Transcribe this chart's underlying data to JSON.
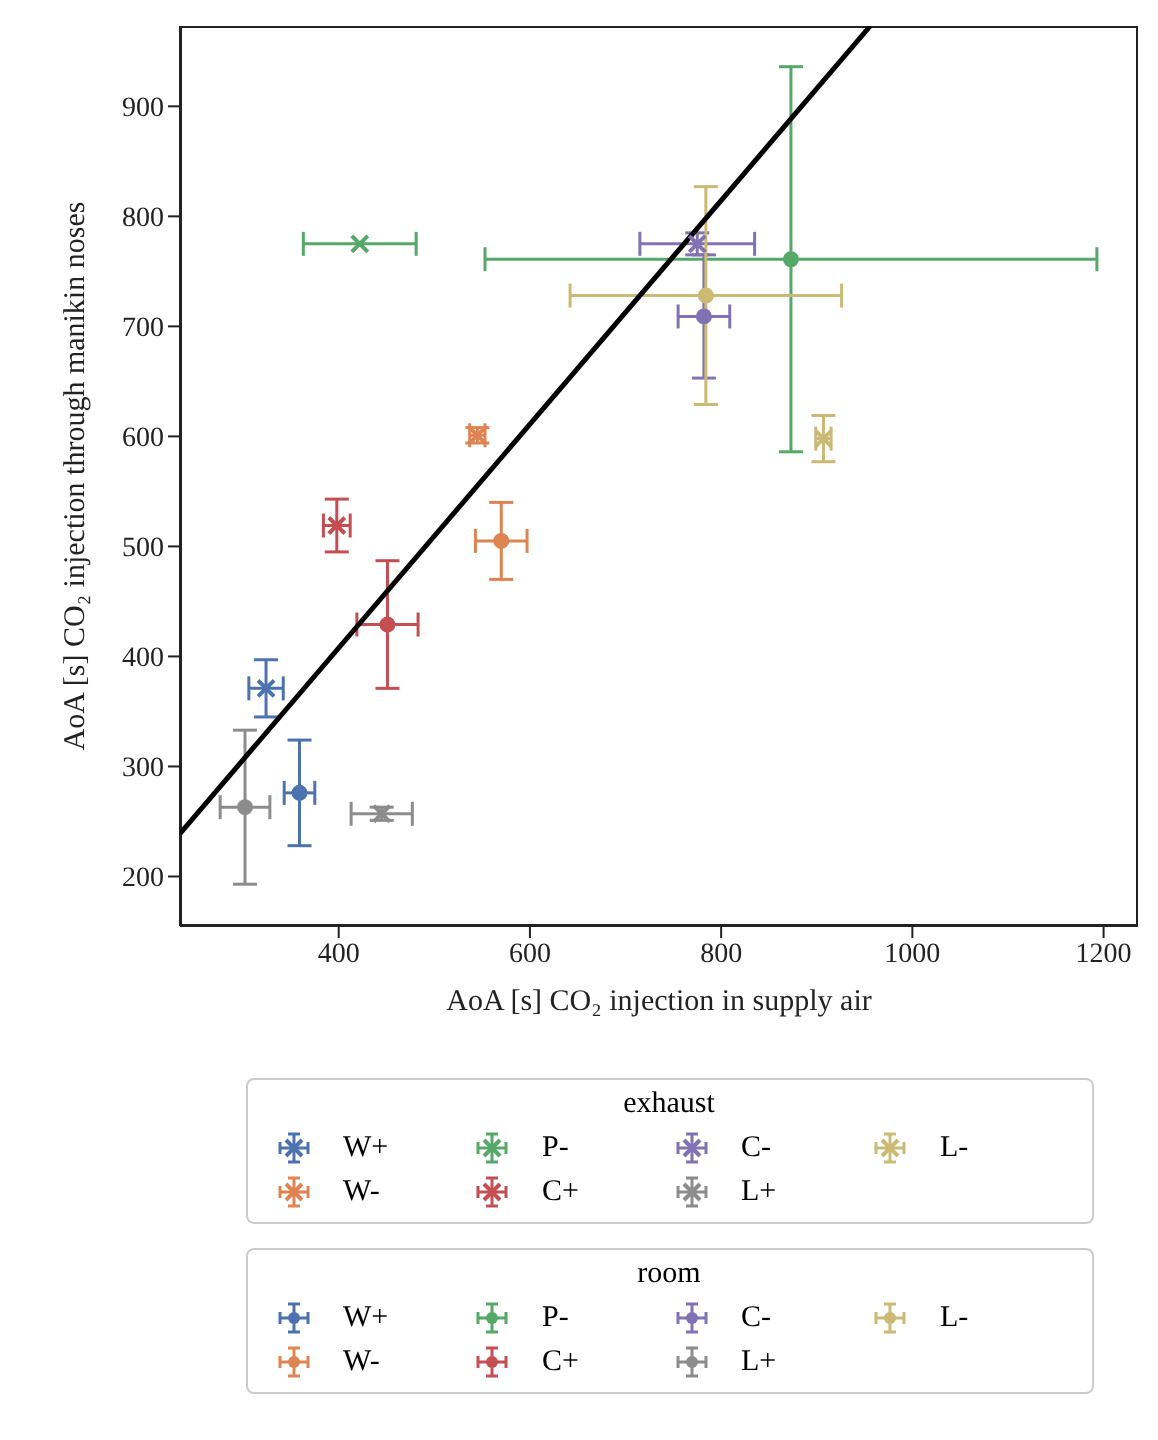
{
  "chart_data": {
    "type": "scatter",
    "xlabel": "AoA [s] CO₂ injection in supply air",
    "ylabel": "AoA [s] CO₂ injection through manikin noses",
    "legend_title": [
      "exhaust",
      "room"
    ],
    "legend": "bottom",
    "xlim": [
      234,
      1236
    ],
    "xticks": [
      400,
      600,
      800,
      1000,
      1200
    ],
    "ylim": [
      155,
      973
    ],
    "yticks": [
      200,
      300,
      400,
      500,
      600,
      700,
      800,
      900
    ],
    "series": [
      {
        "name": "W+",
        "color": "#4c72b0",
        "marker": "cross",
        "x": [
          324
        ],
        "values": [
          371
        ],
        "xerrors": [
          18
        ],
        "errors": [
          26
        ]
      },
      {
        "name": "W-",
        "color": "#dd8452",
        "marker": "cross",
        "x": [
          545
        ],
        "values": [
          601
        ],
        "xerrors": [
          8
        ],
        "errors": [
          7
        ]
      },
      {
        "name": "P-",
        "color": "#55a868",
        "marker": "cross",
        "x": [
          422
        ],
        "values": [
          775
        ],
        "xerrors": [
          59
        ],
        "errors": [
          null
        ]
      },
      {
        "name": "C+",
        "color": "#c44e52",
        "marker": "cross",
        "x": [
          398
        ],
        "values": [
          519
        ],
        "xerrors": [
          14
        ],
        "errors": [
          24
        ]
      },
      {
        "name": "C-",
        "color": "#8172b3",
        "marker": "cross",
        "x": [
          775
        ],
        "values": [
          775
        ],
        "xerrors": [
          60
        ],
        "errors": [
          10
        ]
      },
      {
        "name": "L+",
        "color": "#8c8c8c",
        "marker": "cross",
        "x": [
          445
        ],
        "values": [
          257
        ],
        "xerrors": [
          32
        ],
        "errors": [
          6
        ]
      },
      {
        "name": "L-",
        "color": "#ccb974",
        "marker": "cross",
        "x": [
          907
        ],
        "values": [
          598
        ],
        "xerrors": [
          8
        ],
        "errors": [
          21
        ]
      },
      {
        "name": "W+",
        "color": "#4c72b0",
        "marker": "circle",
        "x": [
          359
        ],
        "values": [
          276
        ],
        "xerrors": [
          16
        ],
        "errors": [
          48
        ]
      },
      {
        "name": "W-",
        "color": "#dd8452",
        "marker": "circle",
        "x": [
          570
        ],
        "values": [
          505
        ],
        "xerrors": [
          27
        ],
        "errors": [
          35
        ]
      },
      {
        "name": "P-",
        "color": "#55a868",
        "marker": "circle",
        "x": [
          873
        ],
        "values": [
          761
        ],
        "xerrors": [
          320
        ],
        "errors": [
          175
        ]
      },
      {
        "name": "C+",
        "color": "#c44e52",
        "marker": "circle",
        "x": [
          451
        ],
        "values": [
          429
        ],
        "xerrors": [
          32
        ],
        "errors": [
          58
        ]
      },
      {
        "name": "C-",
        "color": "#8172b3",
        "marker": "circle",
        "x": [
          782
        ],
        "values": [
          709
        ],
        "xerrors": [
          27
        ],
        "errors": [
          56
        ]
      },
      {
        "name": "L+",
        "color": "#8c8c8c",
        "marker": "circle",
        "x": [
          302
        ],
        "values": [
          263
        ],
        "xerrors": [
          26
        ],
        "errors": [
          70
        ]
      },
      {
        "name": "L-",
        "color": "#ccb974",
        "marker": "circle",
        "x": [
          784
        ],
        "values": [
          728
        ],
        "xerrors": [
          142
        ],
        "errors": [
          99
        ]
      },
      {
        "type": "line",
        "color": "#000000",
        "marker": "none",
        "x": [
          234,
          956
        ],
        "values": [
          239,
          973
        ]
      }
    ]
  }
}
